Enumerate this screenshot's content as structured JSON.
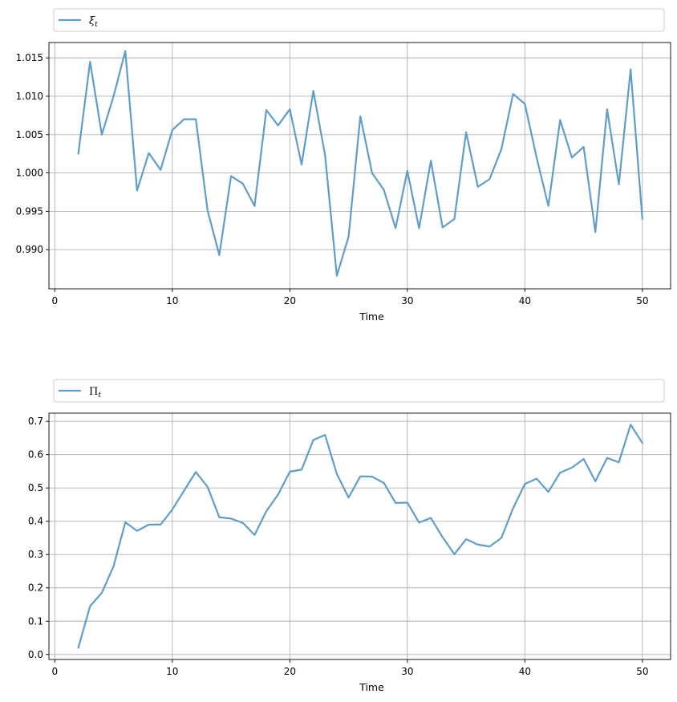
{
  "colors": {
    "line": "#5f9ec9",
    "grid": "#b0b0b0",
    "legend_border": "#cccccc"
  },
  "chart_data": [
    {
      "type": "line",
      "xlabel": "Time",
      "ylabel": "",
      "grid": true,
      "legend_placement": "above-left",
      "xlim": [
        -0.5,
        52.4
      ],
      "ylim": [
        0.9849,
        1.017
      ],
      "xticks": [
        0,
        10,
        20,
        30,
        40,
        50
      ],
      "xtick_labels": [
        "0",
        "10",
        "20",
        "30",
        "40",
        "50"
      ],
      "yticks": [
        0.99,
        0.995,
        1.0,
        1.005,
        1.01,
        1.015
      ],
      "ytick_labels": [
        "0.990",
        "0.995",
        "1.000",
        "1.005",
        "1.010",
        "1.015"
      ],
      "legend": {
        "symbol": "ξ",
        "subscript": "t"
      },
      "series": [
        {
          "x": [
            2,
            3,
            4,
            5,
            6,
            7,
            8,
            9,
            10,
            11,
            12,
            13,
            14,
            15,
            16,
            17,
            18,
            19,
            20,
            21,
            22,
            23,
            24,
            25,
            26,
            27,
            28,
            29,
            30,
            31,
            32,
            33,
            34,
            35,
            36,
            37,
            38,
            39,
            40,
            41,
            42,
            43,
            44,
            45,
            46,
            47,
            48,
            49,
            50
          ],
          "values": [
            1.0025,
            1.0145,
            1.005,
            1.01,
            1.0159,
            0.9977,
            1.0026,
            1.0004,
            1.0056,
            1.007,
            1.007,
            0.9951,
            0.9893,
            0.9996,
            0.9986,
            0.9957,
            1.0082,
            1.0062,
            1.0083,
            1.0011,
            1.0107,
            1.0023,
            0.9866,
            0.9917,
            1.0074,
            1.0,
            0.9978,
            0.9928,
            1.0003,
            0.9928,
            1.0016,
            0.9929,
            0.994,
            1.0053,
            0.9982,
            0.9992,
            1.0031,
            1.0103,
            1.009,
            1.002,
            0.9957,
            1.0069,
            1.002,
            1.0034,
            0.9923,
            1.0083,
            0.9985,
            1.0135,
            0.994
          ]
        }
      ]
    },
    {
      "type": "line",
      "xlabel": "Time",
      "ylabel": "",
      "grid": true,
      "legend_placement": "above-left",
      "xlim": [
        -0.5,
        52.4
      ],
      "ylim": [
        -0.015,
        0.7245
      ],
      "xticks": [
        0,
        10,
        20,
        30,
        40,
        50
      ],
      "xtick_labels": [
        "0",
        "10",
        "20",
        "30",
        "40",
        "50"
      ],
      "yticks": [
        0.0,
        0.1,
        0.2,
        0.3,
        0.4,
        0.5,
        0.6,
        0.7
      ],
      "ytick_labels": [
        "0.0",
        "0.1",
        "0.2",
        "0.3",
        "0.4",
        "0.5",
        "0.6",
        "0.7"
      ],
      "legend": {
        "symbol": "Π",
        "subscript": "t"
      },
      "series": [
        {
          "x": [
            2,
            3,
            4,
            5,
            6,
            7,
            8,
            9,
            10,
            11,
            12,
            13,
            14,
            15,
            16,
            17,
            18,
            19,
            20,
            21,
            22,
            23,
            24,
            25,
            26,
            27,
            28,
            29,
            30,
            31,
            32,
            33,
            34,
            35,
            36,
            37,
            38,
            39,
            40,
            41,
            42,
            43,
            44,
            45,
            46,
            47,
            48,
            49,
            50
          ],
          "values": [
            0.02,
            0.145,
            0.185,
            0.265,
            0.397,
            0.371,
            0.39,
            0.39,
            0.435,
            0.492,
            0.548,
            0.503,
            0.412,
            0.408,
            0.395,
            0.359,
            0.43,
            0.48,
            0.549,
            0.555,
            0.644,
            0.659,
            0.542,
            0.471,
            0.535,
            0.534,
            0.515,
            0.455,
            0.456,
            0.396,
            0.41,
            0.352,
            0.301,
            0.346,
            0.33,
            0.324,
            0.35,
            0.439,
            0.512,
            0.528,
            0.488,
            0.546,
            0.561,
            0.587,
            0.52,
            0.59,
            0.577,
            0.69,
            0.635
          ]
        }
      ]
    }
  ]
}
